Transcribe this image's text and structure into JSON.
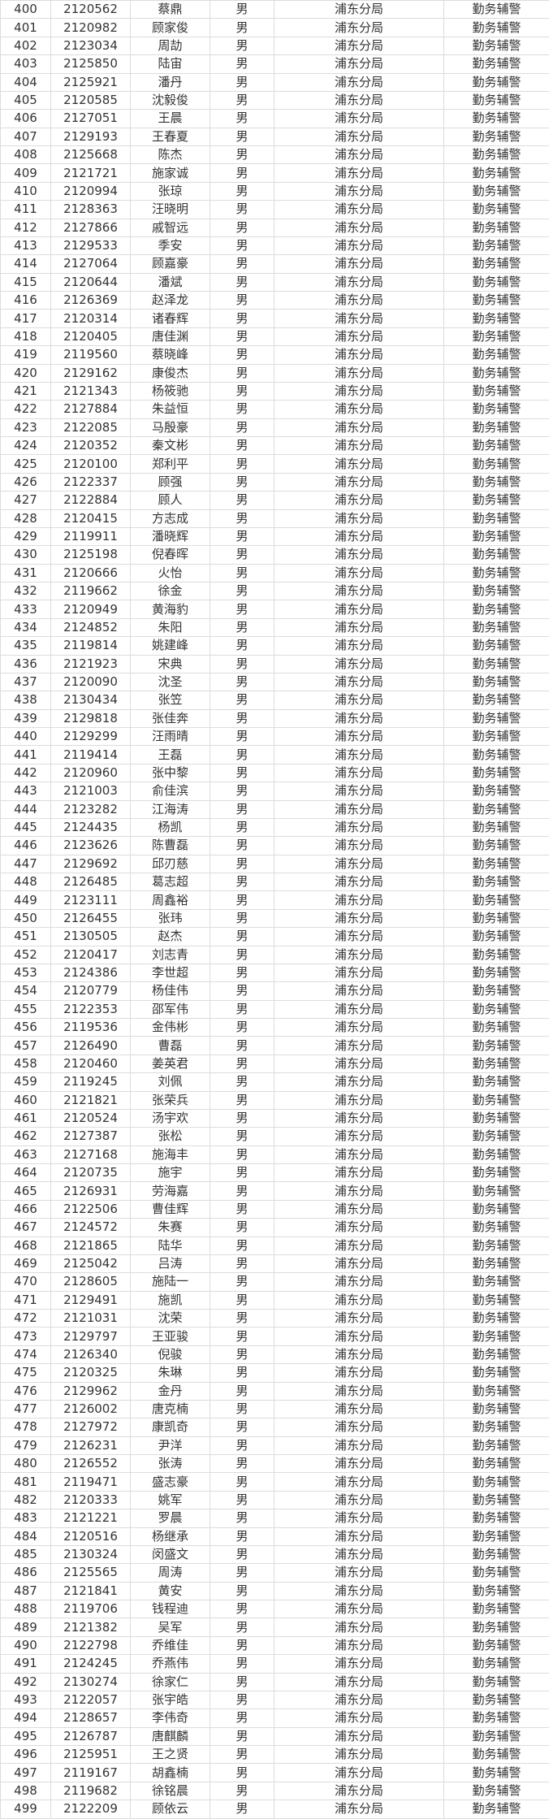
{
  "table": {
    "rows": [
      [
        "400",
        "2120562",
        "蔡鼎"
      ],
      [
        "401",
        "2120982",
        "顾家俊"
      ],
      [
        "402",
        "2123034",
        "周劼"
      ],
      [
        "403",
        "2125850",
        "陆宙"
      ],
      [
        "404",
        "2125921",
        "潘丹"
      ],
      [
        "405",
        "2120585",
        "沈毅俊"
      ],
      [
        "406",
        "2127051",
        "王晨"
      ],
      [
        "407",
        "2129193",
        "王春夏"
      ],
      [
        "408",
        "2125668",
        "陈杰"
      ],
      [
        "409",
        "2121721",
        "施家诚"
      ],
      [
        "410",
        "2120994",
        "张琼"
      ],
      [
        "411",
        "2128363",
        "汪晓明"
      ],
      [
        "412",
        "2127866",
        "戚智远"
      ],
      [
        "413",
        "2129533",
        "季安"
      ],
      [
        "414",
        "2127064",
        "顾嘉豪"
      ],
      [
        "415",
        "2120644",
        "潘斌"
      ],
      [
        "416",
        "2126369",
        "赵泽龙"
      ],
      [
        "417",
        "2120314",
        "诸春辉"
      ],
      [
        "418",
        "2120405",
        "唐佳渊"
      ],
      [
        "419",
        "2119560",
        "蔡晓峰"
      ],
      [
        "420",
        "2129162",
        "康俊杰"
      ],
      [
        "421",
        "2121343",
        "杨筱驰"
      ],
      [
        "422",
        "2127884",
        "朱益恒"
      ],
      [
        "423",
        "2122085",
        "马殷豪"
      ],
      [
        "424",
        "2120352",
        "秦文彬"
      ],
      [
        "425",
        "2120100",
        "郑利平"
      ],
      [
        "426",
        "2122337",
        "顾强"
      ],
      [
        "427",
        "2122884",
        "顾人"
      ],
      [
        "428",
        "2120415",
        "方志成"
      ],
      [
        "429",
        "2119911",
        "潘晓辉"
      ],
      [
        "430",
        "2125198",
        "倪春晖"
      ],
      [
        "431",
        "2120666",
        "火怡"
      ],
      [
        "432",
        "2119662",
        "徐金"
      ],
      [
        "433",
        "2120949",
        "黄海豹"
      ],
      [
        "434",
        "2124852",
        "朱阳"
      ],
      [
        "435",
        "2119814",
        "姚建峰"
      ],
      [
        "436",
        "2121923",
        "宋典"
      ],
      [
        "437",
        "2120090",
        "沈圣"
      ],
      [
        "438",
        "2130434",
        "张笠"
      ],
      [
        "439",
        "2129818",
        "张佳奔"
      ],
      [
        "440",
        "2129299",
        "汪雨晴"
      ],
      [
        "441",
        "2119414",
        "王磊"
      ],
      [
        "442",
        "2120960",
        "张中黎"
      ],
      [
        "443",
        "2121003",
        "俞佳滨"
      ],
      [
        "444",
        "2123282",
        "江海涛"
      ],
      [
        "445",
        "2124435",
        "杨凯"
      ],
      [
        "446",
        "2123626",
        "陈曹磊"
      ],
      [
        "447",
        "2129692",
        "邱刃慈"
      ],
      [
        "448",
        "2126485",
        "葛志超"
      ],
      [
        "449",
        "2123111",
        "周鑫裕"
      ],
      [
        "450",
        "2126455",
        "张玮"
      ],
      [
        "451",
        "2130505",
        "赵杰"
      ],
      [
        "452",
        "2120417",
        "刘志青"
      ],
      [
        "453",
        "2124386",
        "李世超"
      ],
      [
        "454",
        "2120779",
        "杨佳伟"
      ],
      [
        "455",
        "2122353",
        "邵军伟"
      ],
      [
        "456",
        "2119536",
        "金伟彬"
      ],
      [
        "457",
        "2126490",
        "曹磊"
      ],
      [
        "458",
        "2120460",
        "姜英君"
      ],
      [
        "459",
        "2119245",
        "刘佩"
      ],
      [
        "460",
        "2121821",
        "张荣兵"
      ],
      [
        "461",
        "2120524",
        "汤宇欢"
      ],
      [
        "462",
        "2127387",
        "张松"
      ],
      [
        "463",
        "2127168",
        "施海丰"
      ],
      [
        "464",
        "2120735",
        "施宇"
      ],
      [
        "465",
        "2126931",
        "劳海嘉"
      ],
      [
        "466",
        "2122506",
        "曹佳辉"
      ],
      [
        "467",
        "2124572",
        "朱赛"
      ],
      [
        "468",
        "2121865",
        "陆华"
      ],
      [
        "469",
        "2125042",
        "吕涛"
      ],
      [
        "470",
        "2128605",
        "施陆一"
      ],
      [
        "471",
        "2129491",
        "施凯"
      ],
      [
        "472",
        "2121031",
        "沈荣"
      ],
      [
        "473",
        "2129797",
        "王亚骏"
      ],
      [
        "474",
        "2126340",
        "倪骏"
      ],
      [
        "475",
        "2120325",
        "朱琳"
      ],
      [
        "476",
        "2129962",
        "金丹"
      ],
      [
        "477",
        "2126002",
        "唐克楠"
      ],
      [
        "478",
        "2127972",
        "康凯奇"
      ],
      [
        "479",
        "2126231",
        "尹洋"
      ],
      [
        "480",
        "2126552",
        "张涛"
      ],
      [
        "481",
        "2119471",
        "盛志豪"
      ],
      [
        "482",
        "2120333",
        "姚军"
      ],
      [
        "483",
        "2121221",
        "罗晨"
      ],
      [
        "484",
        "2120516",
        "杨继承"
      ],
      [
        "485",
        "2130324",
        "闵盛文"
      ],
      [
        "486",
        "2125565",
        "周涛"
      ],
      [
        "487",
        "2121841",
        "黄安"
      ],
      [
        "488",
        "2119706",
        "钱程迪"
      ],
      [
        "489",
        "2121382",
        "吴军"
      ],
      [
        "490",
        "2122798",
        "乔维佳"
      ],
      [
        "491",
        "2124245",
        "乔燕伟"
      ],
      [
        "492",
        "2130274",
        "徐家仁"
      ],
      [
        "493",
        "2122057",
        "张宇皓"
      ],
      [
        "494",
        "2128657",
        "李伟奇"
      ],
      [
        "495",
        "2126787",
        "唐麒麟"
      ],
      [
        "496",
        "2125951",
        "王之贤"
      ],
      [
        "497",
        "2119167",
        "胡鑫楠"
      ],
      [
        "498",
        "2119682",
        "徐铭晨"
      ],
      [
        "499",
        "2122209",
        "顾依云"
      ]
    ],
    "gender": "男",
    "unit": "浦东分局",
    "position": "勤务辅警"
  }
}
